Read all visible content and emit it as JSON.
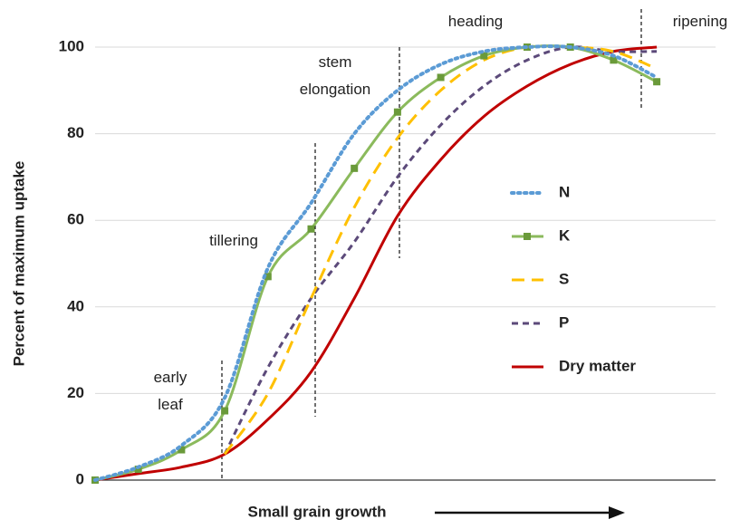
{
  "chart_data": {
    "type": "line",
    "ylabel": "Percent of maximum uptake",
    "xlabel": "Small grain growth",
    "categories": [
      null,
      null,
      null,
      null,
      null,
      null,
      null,
      null,
      null,
      null,
      null,
      null,
      null,
      null
    ],
    "series": [
      {
        "name": "N",
        "color": "#5b9bd5",
        "style": "dotted",
        "values": [
          0,
          3,
          8,
          19,
          49,
          64,
          80,
          90,
          96,
          99,
          100,
          100,
          98,
          93
        ]
      },
      {
        "name": "K",
        "color": "#8bba5c",
        "style": "solid",
        "marker": "square",
        "marker_color": "#6a9a3a",
        "values": [
          0,
          2.5,
          7,
          16,
          47,
          58,
          72,
          85,
          93,
          98,
          100,
          100,
          97,
          92
        ]
      },
      {
        "name": "S",
        "color": "#ffc000",
        "style": "dashed",
        "values": [
          null,
          null,
          null,
          6,
          20,
          42,
          63,
          79,
          90,
          97,
          100,
          100,
          99,
          95
        ]
      },
      {
        "name": "P",
        "color": "#5c4a7a",
        "style": "shortdash",
        "values": [
          null,
          null,
          null,
          6,
          26,
          42,
          55,
          70,
          82,
          91,
          97,
          100,
          99,
          99
        ]
      },
      {
        "name": "Dry matter",
        "color": "#c00000",
        "style": "solid",
        "values": [
          0,
          1.5,
          3,
          6,
          14,
          25,
          42,
          61,
          74,
          84,
          91,
          96,
          99,
          100
        ]
      }
    ],
    "ylim": [
      0,
      100
    ],
    "yticks": [
      0,
      20,
      40,
      60,
      80,
      100
    ],
    "grid": true,
    "legend": "right",
    "annotations": [
      "early\nleaf",
      "tillering",
      "stem\nelongation",
      "heading",
      "ripening"
    ]
  }
}
